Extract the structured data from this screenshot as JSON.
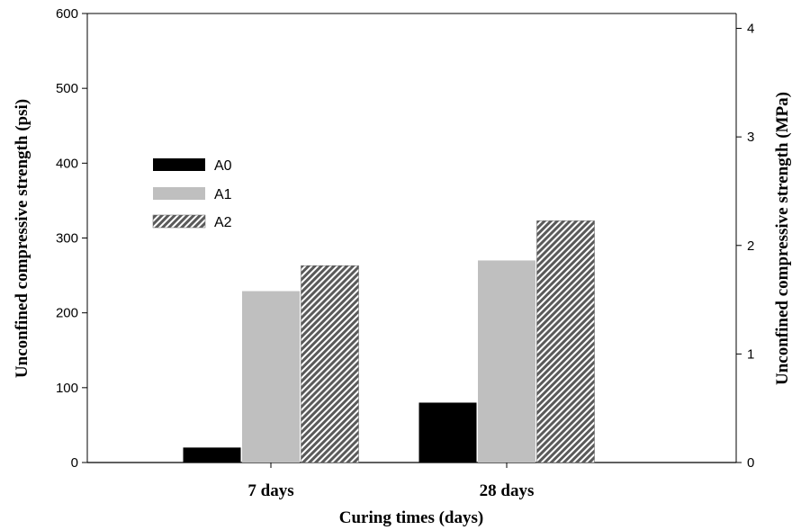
{
  "chart_data": {
    "type": "bar",
    "categories": [
      "7 days",
      "28 days"
    ],
    "series": [
      {
        "name": "A0",
        "values": [
          20,
          80
        ],
        "color": "#000000",
        "pattern": "solid"
      },
      {
        "name": "A1",
        "values": [
          229,
          270
        ],
        "color": "#bfbfbf",
        "pattern": "solid"
      },
      {
        "name": "A2",
        "values": [
          263,
          323
        ],
        "color": "#5a5a5a",
        "pattern": "diagonal-hatch"
      }
    ],
    "xlabel": "Curing times (days)",
    "ylabel": "Unconfined compressive strength (psi)",
    "ylabel_right": "Unconfined compressive strength (MPa)",
    "ylim": [
      0,
      600
    ],
    "yticks": [
      0,
      100,
      200,
      300,
      400,
      500,
      600
    ],
    "ylim_right": [
      0,
      4.137
    ],
    "yticks_right": [
      0,
      1,
      2,
      3,
      4
    ],
    "legend_position": "left",
    "grid": false
  }
}
